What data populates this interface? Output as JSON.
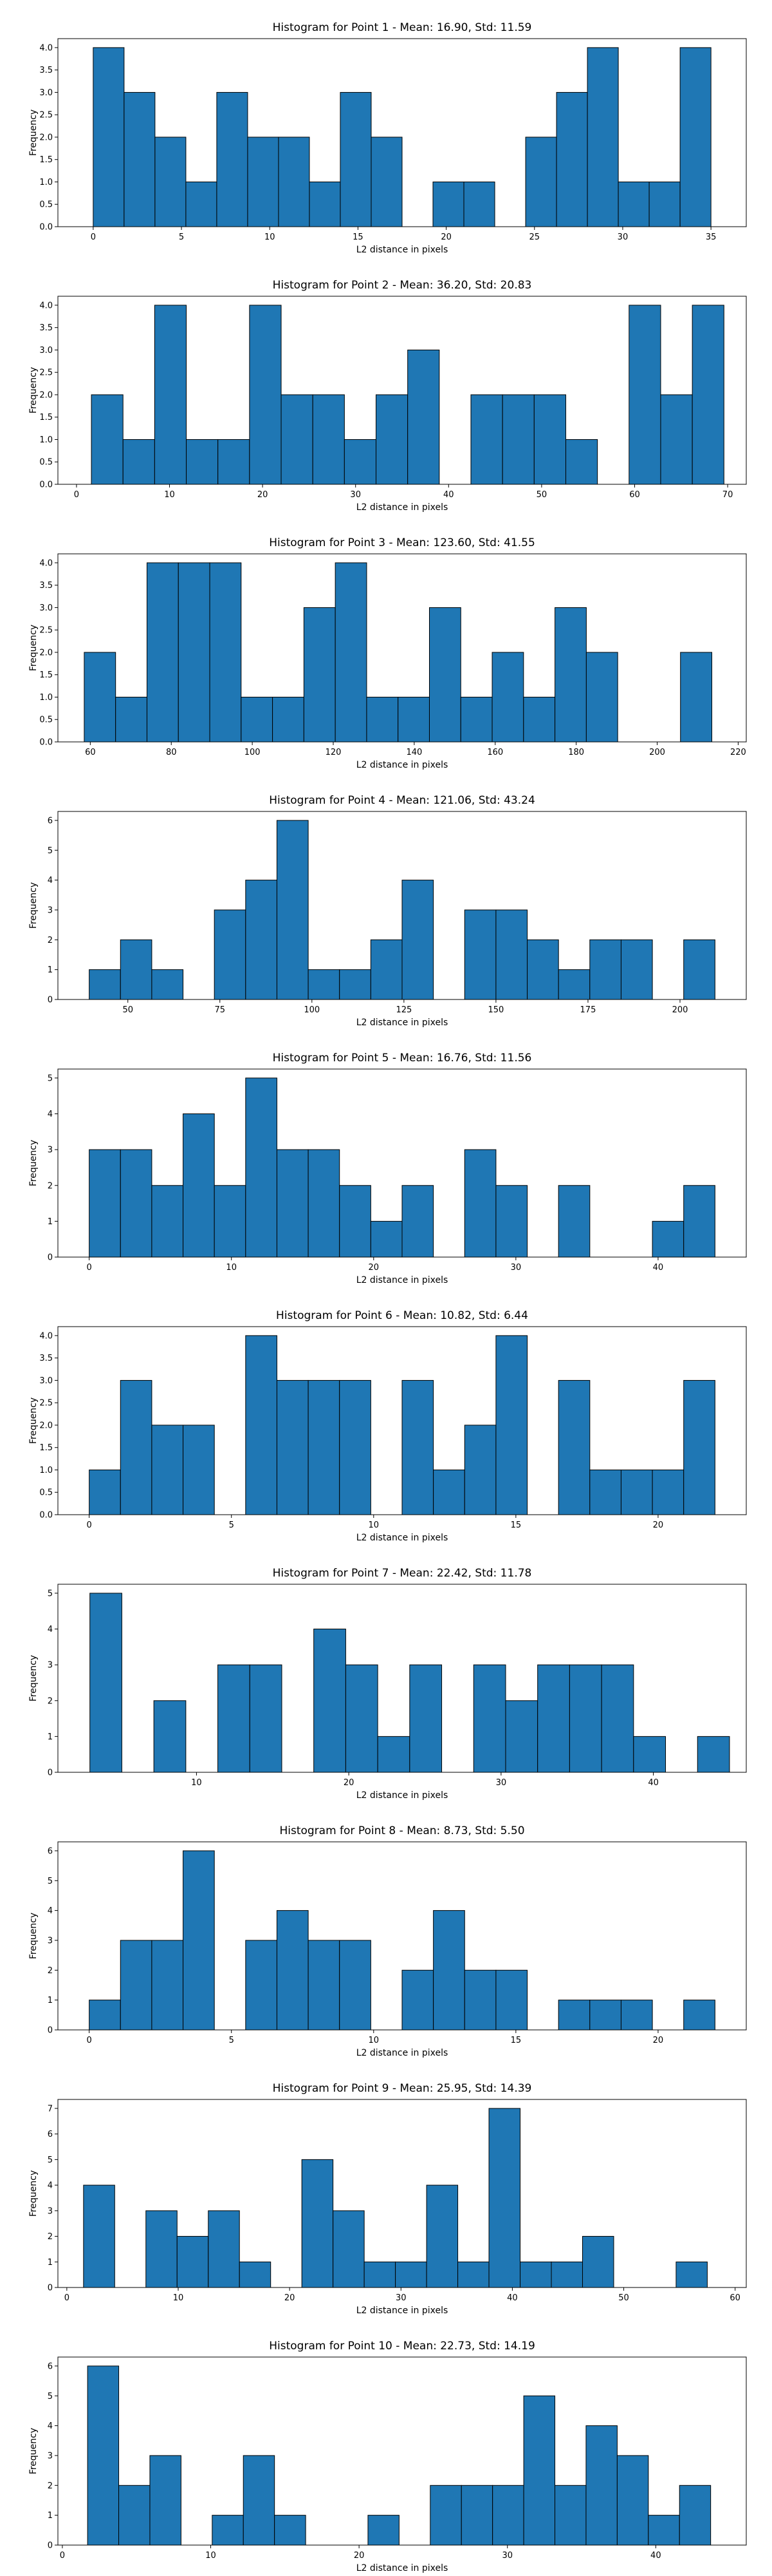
{
  "chart_data": [
    {
      "type": "bar",
      "title": "Histogram for Point 1 - Mean: 16.90, Std: 11.59",
      "xlabel": "L2 distance in pixels",
      "ylabel": "Frequency",
      "xlim": [
        -2,
        37
      ],
      "ylim": [
        0,
        4.2
      ],
      "xticks": [
        0,
        5,
        10,
        15,
        20,
        25,
        30,
        35
      ],
      "yticks": [
        0.0,
        0.5,
        1.0,
        1.5,
        2.0,
        2.5,
        3.0,
        3.5,
        4.0
      ],
      "ytick_decimals": 1,
      "bin_start": 0,
      "bin_width": 1.75,
      "values": [
        4,
        3,
        2,
        1,
        3,
        2,
        2,
        1,
        3,
        2,
        0,
        1,
        1,
        0,
        2,
        3,
        4,
        1,
        1,
        4
      ]
    },
    {
      "type": "bar",
      "title": "Histogram for Point 2 - Mean: 36.20, Std: 20.83",
      "xlabel": "L2 distance in pixels",
      "ylabel": "Frequency",
      "xlim": [
        -2,
        72
      ],
      "ylim": [
        0,
        4.2
      ],
      "xticks": [
        0,
        10,
        20,
        30,
        40,
        50,
        60,
        70
      ],
      "yticks": [
        0.0,
        0.5,
        1.0,
        1.5,
        2.0,
        2.5,
        3.0,
        3.5,
        4.0
      ],
      "ytick_decimals": 1,
      "bin_start": 1.6,
      "bin_width": 3.4,
      "values": [
        2,
        1,
        4,
        1,
        1,
        4,
        2,
        2,
        1,
        2,
        3,
        0,
        2,
        2,
        2,
        1,
        0,
        4,
        2,
        4
      ]
    },
    {
      "type": "bar",
      "title": "Histogram for Point 3 - Mean: 123.60, Std: 41.55",
      "xlabel": "L2 distance in pixels",
      "ylabel": "Frequency",
      "xlim": [
        52,
        222
      ],
      "ylim": [
        0,
        4.2
      ],
      "xticks": [
        60,
        80,
        100,
        120,
        140,
        160,
        180,
        200,
        220
      ],
      "yticks": [
        0.0,
        0.5,
        1.0,
        1.5,
        2.0,
        2.5,
        3.0,
        3.5,
        4.0
      ],
      "ytick_decimals": 1,
      "bin_start": 58.5,
      "bin_width": 7.75,
      "values": [
        2,
        1,
        4,
        4,
        4,
        1,
        1,
        3,
        4,
        1,
        1,
        3,
        1,
        2,
        1,
        3,
        2,
        0,
        0,
        2
      ]
    },
    {
      "type": "bar",
      "title": "Histogram for Point 4 - Mean: 121.06, Std: 43.24",
      "xlabel": "L2 distance in pixels",
      "ylabel": "Frequency",
      "xlim": [
        31,
        218
      ],
      "ylim": [
        0,
        6.3
      ],
      "xticks": [
        50,
        75,
        100,
        125,
        150,
        175,
        200
      ],
      "yticks": [
        0,
        1,
        2,
        3,
        4,
        5,
        6
      ],
      "ytick_decimals": 0,
      "bin_start": 39.5,
      "bin_width": 8.5,
      "values": [
        1,
        2,
        1,
        0,
        3,
        4,
        6,
        1,
        1,
        2,
        4,
        0,
        3,
        3,
        2,
        1,
        2,
        2,
        0,
        2
      ]
    },
    {
      "type": "bar",
      "title": "Histogram for Point 5 - Mean: 16.76, Std: 11.56",
      "xlabel": "L2 distance in pixels",
      "ylabel": "Frequency",
      "xlim": [
        -2.2,
        46.2
      ],
      "ylim": [
        0,
        5.25
      ],
      "xticks": [
        0,
        10,
        20,
        30,
        40
      ],
      "yticks": [
        0,
        1,
        2,
        3,
        4,
        5
      ],
      "ytick_decimals": 0,
      "bin_start": 0,
      "bin_width": 2.2,
      "values": [
        3,
        3,
        2,
        4,
        2,
        5,
        3,
        3,
        2,
        1,
        2,
        0,
        3,
        2,
        0,
        2,
        0,
        0,
        1,
        2
      ]
    },
    {
      "type": "bar",
      "title": "Histogram for Point 6 - Mean: 10.82, Std: 6.44",
      "xlabel": "L2 distance in pixels",
      "ylabel": "Frequency",
      "xlim": [
        -1.1,
        23.1
      ],
      "ylim": [
        0,
        4.2
      ],
      "xticks": [
        0,
        5,
        10,
        15,
        20
      ],
      "yticks": [
        0.0,
        0.5,
        1.0,
        1.5,
        2.0,
        2.5,
        3.0,
        3.5,
        4.0
      ],
      "ytick_decimals": 1,
      "bin_start": 0,
      "bin_width": 1.1,
      "values": [
        1,
        3,
        2,
        2,
        0,
        4,
        3,
        3,
        3,
        0,
        3,
        1,
        2,
        4,
        0,
        3,
        1,
        1,
        1,
        3
      ]
    },
    {
      "type": "bar",
      "title": "Histogram for Point 7 - Mean: 22.42, Std: 11.78",
      "xlabel": "L2 distance in pixels",
      "ylabel": "Frequency",
      "xlim": [
        0.9,
        46.1
      ],
      "ylim": [
        0,
        5.25
      ],
      "xticks": [
        10,
        20,
        30,
        40
      ],
      "yticks": [
        0,
        1,
        2,
        3,
        4,
        5
      ],
      "ytick_decimals": 0,
      "bin_start": 3,
      "bin_width": 2.1,
      "values": [
        5,
        0,
        2,
        0,
        3,
        3,
        0,
        4,
        3,
        1,
        3,
        0,
        3,
        2,
        3,
        3,
        3,
        1,
        0,
        1
      ]
    },
    {
      "type": "bar",
      "title": "Histogram for Point 8 - Mean: 8.73, Std: 5.50",
      "xlabel": "L2 distance in pixels",
      "ylabel": "Frequency",
      "xlim": [
        -1.1,
        23.1
      ],
      "ylim": [
        0,
        6.3
      ],
      "xticks": [
        0,
        5,
        10,
        15,
        20
      ],
      "yticks": [
        0,
        1,
        2,
        3,
        4,
        5,
        6
      ],
      "ytick_decimals": 0,
      "bin_start": 0,
      "bin_width": 1.1,
      "values": [
        1,
        3,
        3,
        6,
        0,
        3,
        4,
        3,
        3,
        0,
        2,
        4,
        2,
        2,
        0,
        1,
        1,
        1,
        0,
        1
      ]
    },
    {
      "type": "bar",
      "title": "Histogram for Point 9 - Mean: 25.95, Std: 14.39",
      "xlabel": "L2 distance in pixels",
      "ylabel": "Frequency",
      "xlim": [
        -0.8,
        61
      ],
      "ylim": [
        0,
        7.35
      ],
      "xticks": [
        0,
        10,
        20,
        30,
        40,
        50,
        60
      ],
      "yticks": [
        0,
        1,
        2,
        3,
        4,
        5,
        6,
        7
      ],
      "ytick_decimals": 0,
      "bin_start": 1.5,
      "bin_width": 2.8,
      "values": [
        4,
        0,
        3,
        2,
        3,
        1,
        0,
        5,
        3,
        1,
        1,
        4,
        1,
        7,
        1,
        1,
        2,
        0,
        0,
        1
      ]
    },
    {
      "type": "bar",
      "title": "Histogram for Point 10 - Mean: 22.73, Std: 14.19",
      "xlabel": "L2 distance in pixels",
      "ylabel": "Frequency",
      "xlim": [
        -0.3,
        46.1
      ],
      "ylim": [
        0,
        6.3
      ],
      "xticks": [
        0,
        10,
        20,
        30,
        40
      ],
      "yticks": [
        0,
        1,
        2,
        3,
        4,
        5,
        6
      ],
      "ytick_decimals": 0,
      "bin_start": 1.7,
      "bin_width": 2.1,
      "values": [
        6,
        2,
        3,
        0,
        1,
        3,
        1,
        0,
        0,
        1,
        0,
        2,
        2,
        2,
        5,
        2,
        4,
        3,
        1,
        2
      ]
    }
  ],
  "colors": {
    "bar_fill": "#1f77b4",
    "bar_edge": "#000000",
    "axis": "#000000"
  }
}
